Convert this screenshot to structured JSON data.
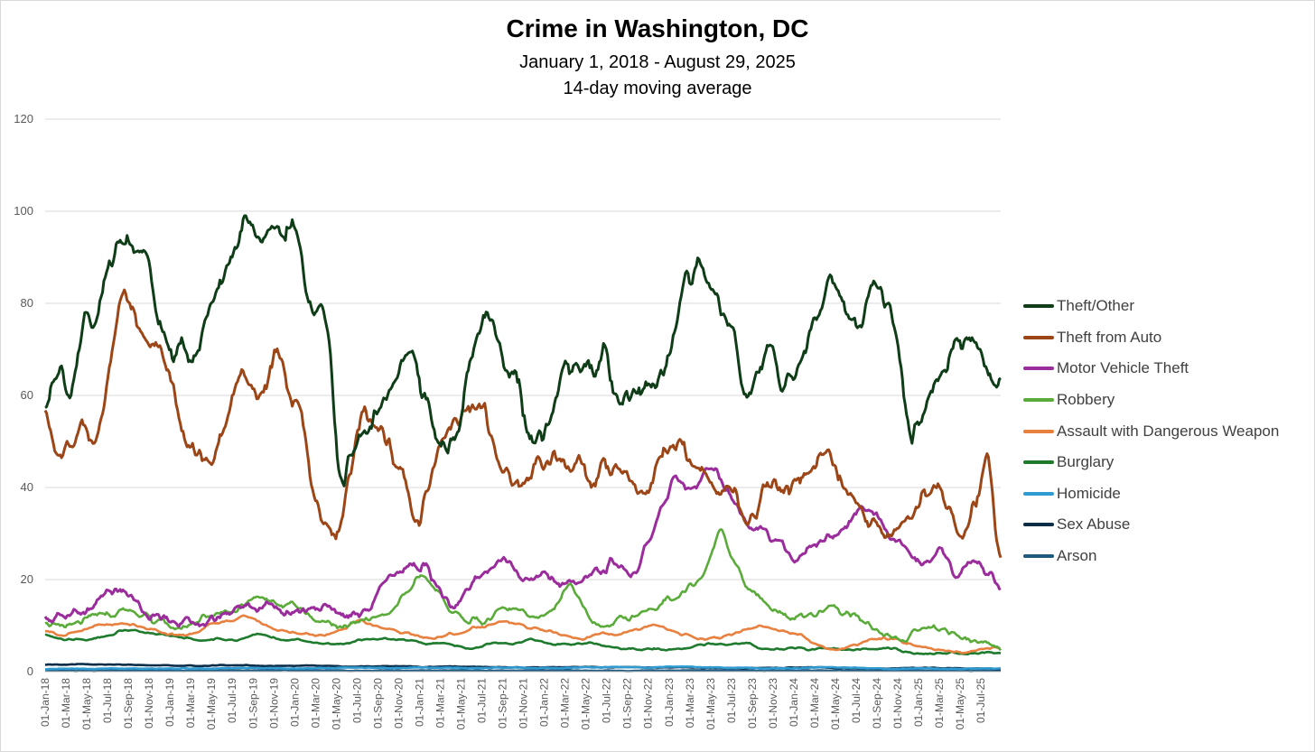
{
  "chart_data": {
    "type": "line",
    "title": "Crime in Washington, DC",
    "subtitle": "January 1, 2018 - August 29, 2025",
    "subtitle2": "14-day moving average",
    "xlabel": "",
    "ylabel": "",
    "ylim": [
      0,
      120
    ],
    "yticks": [
      0,
      20,
      40,
      60,
      80,
      100,
      120
    ],
    "grid": true,
    "legend_position": "right",
    "x_start": "2018-01-01",
    "x_end": "2025-08-29",
    "xtick_labels": [
      "01-Jan-18",
      "01-Mar-18",
      "01-May-18",
      "01-Jul-18",
      "01-Sep-18",
      "01-Nov-18",
      "01-Jan-19",
      "01-Mar-19",
      "01-May-19",
      "01-Jul-19",
      "01-Sep-19",
      "01-Nov-19",
      "01-Jan-20",
      "01-Mar-20",
      "01-May-20",
      "01-Jul-20",
      "01-Sep-20",
      "01-Nov-20",
      "01-Jan-21",
      "01-Mar-21",
      "01-May-21",
      "01-Jul-21",
      "01-Sep-21",
      "01-Nov-21",
      "01-Jan-22",
      "01-Mar-22",
      "01-May-22",
      "01-Jul-22",
      "01-Sep-22",
      "01-Nov-22",
      "01-Jan-23",
      "01-Mar-23",
      "01-May-23",
      "01-Jul-23",
      "01-Sep-23",
      "01-Nov-23",
      "01-Jan-24",
      "01-Mar-24",
      "01-May-24",
      "01-Jul-24",
      "01-Sep-24",
      "01-Nov-24",
      "01-Jan-25",
      "01-Mar-25",
      "01-May-25",
      "01-Jul-25"
    ],
    "x_knot_months": [
      0,
      1,
      2,
      3,
      4,
      5,
      6,
      7,
      8,
      9,
      10,
      11,
      12,
      13,
      14,
      15,
      16,
      17,
      18,
      19,
      20,
      21,
      22,
      23,
      24,
      25,
      26,
      27,
      28,
      29,
      30,
      31,
      32,
      33,
      34,
      35,
      36,
      37,
      38,
      39,
      40,
      41,
      42,
      43,
      44,
      45,
      46,
      47,
      48,
      49,
      50,
      51,
      52,
      53,
      54,
      55,
      56,
      57,
      58,
      59,
      60,
      61,
      62,
      63,
      64,
      65,
      66,
      67,
      68,
      69,
      70,
      71,
      72,
      73,
      74,
      75,
      76,
      77,
      78,
      79,
      80,
      81,
      82,
      83,
      84,
      85,
      86,
      87,
      88,
      89,
      90,
      91,
      92
    ],
    "series": [
      {
        "name": "Theft/Other",
        "color": "#0f3d18",
        "values": [
          58,
          67,
          63,
          74,
          79,
          88,
          94,
          93,
          88,
          76,
          70,
          68,
          72,
          82,
          86,
          93,
          98,
          94,
          94,
          96,
          90,
          80,
          78,
          46,
          44,
          52,
          56,
          63,
          66,
          67,
          57,
          49,
          50,
          62,
          72,
          75,
          66,
          62,
          52,
          51,
          56,
          67,
          68,
          64,
          68,
          62,
          62,
          63,
          62,
          70,
          80,
          88,
          84,
          77,
          72,
          60,
          65,
          70,
          62,
          67,
          72,
          80,
          85,
          77,
          73,
          82,
          81,
          68,
          52,
          58,
          65,
          70,
          73,
          72,
          67,
          62
        ]
      },
      {
        "name": "Theft from Auto",
        "color": "#9c4617",
        "values": [
          56,
          50,
          49,
          52,
          52,
          64,
          80,
          77,
          72,
          68,
          62,
          52,
          48,
          46,
          52,
          62,
          62,
          60,
          68,
          62,
          56,
          38,
          33,
          32,
          42,
          55,
          52,
          48,
          44,
          34,
          40,
          50,
          52,
          55,
          58,
          52,
          44,
          40,
          44,
          46,
          46,
          44,
          44,
          42,
          44,
          45,
          41,
          38,
          44,
          48,
          50,
          45,
          42,
          40,
          38,
          34,
          36,
          40,
          38,
          40,
          43,
          45,
          44,
          38,
          35,
          32,
          30,
          31,
          34,
          38,
          42,
          35,
          30,
          36,
          44,
          24
        ]
      },
      {
        "name": "Motor Vehicle Theft",
        "color": "#9b2c9c",
        "values": [
          12,
          11,
          12,
          14,
          17,
          18,
          15,
          12,
          11,
          10,
          11,
          10,
          12,
          13,
          14,
          14,
          13,
          13,
          13,
          14,
          13,
          12,
          14,
          20,
          22,
          24,
          22,
          18,
          14,
          18,
          22,
          24,
          22,
          20,
          22,
          18,
          20,
          20,
          22,
          24,
          22,
          28,
          36,
          42,
          40,
          44,
          42,
          36,
          32,
          30,
          28,
          24,
          26,
          28,
          30,
          33,
          35,
          31,
          28,
          25,
          24,
          26,
          22,
          24,
          22,
          18
        ]
      },
      {
        "name": "Robbery",
        "color": "#5aab3a",
        "values": [
          11,
          10,
          11,
          12,
          12,
          13,
          12,
          11,
          10,
          10,
          12,
          13,
          14,
          16,
          15,
          14,
          12,
          10,
          10,
          11,
          12,
          14,
          18,
          20,
          16,
          12,
          11,
          12,
          14,
          13,
          12,
          15,
          18,
          12,
          10,
          12,
          12,
          14,
          16,
          18,
          22,
          30,
          22,
          18,
          14,
          12,
          12,
          13,
          14,
          12,
          10,
          8,
          7,
          9,
          10,
          8,
          7,
          6,
          5
        ]
      },
      {
        "name": "Assault with Dangerous Weapon",
        "color": "#e8803f",
        "values": [
          9,
          8,
          9,
          10,
          10,
          10,
          9,
          8,
          8,
          10,
          11,
          12,
          10,
          9,
          8,
          8,
          9,
          11,
          10,
          9,
          8,
          7,
          8,
          9,
          10,
          11,
          10,
          9,
          8,
          7,
          8,
          8,
          9,
          10,
          9,
          8,
          7,
          8,
          9,
          10,
          9,
          8,
          6,
          5,
          6,
          7,
          7,
          6,
          5,
          5,
          4,
          5,
          5
        ]
      },
      {
        "name": "Burglary",
        "color": "#1e7a2c",
        "values": [
          8,
          7,
          7,
          8,
          9,
          8,
          8,
          7,
          7,
          7,
          8,
          7,
          7,
          6,
          6,
          7,
          7,
          7,
          6,
          6,
          5,
          6,
          6,
          7,
          6,
          6,
          6,
          5,
          5,
          5,
          5,
          6,
          6,
          6,
          5,
          5,
          5,
          5,
          5,
          5,
          5,
          4,
          4,
          4,
          4,
          4
        ]
      },
      {
        "name": "Homicide",
        "color": "#2f9bd1",
        "values": [
          0.6,
          0.6,
          0.7,
          0.6,
          0.7,
          0.7,
          0.8,
          0.7,
          0.8,
          0.9,
          0.8,
          0.9,
          0.8,
          0.9,
          0.8,
          0.9,
          1.0,
          0.9,
          1.1,
          0.9,
          0.8,
          0.7,
          0.9,
          0.8,
          0.6,
          0.7,
          0.6,
          0.7
        ]
      },
      {
        "name": "Sex Abuse",
        "color": "#0c2d48",
        "values": [
          1.5,
          1.6,
          1.5,
          1.4,
          1.3,
          1.4,
          1.2,
          1.3,
          1.1,
          1.2,
          1.0,
          1.1,
          1.0,
          0.9,
          1.0,
          1.0,
          0.9,
          0.9,
          0.8,
          0.8,
          0.9,
          0.8,
          0.7,
          0.8,
          0.7,
          0.6
        ]
      },
      {
        "name": "Arson",
        "color": "#1f5a80",
        "values": [
          0.3,
          0.2,
          0.3,
          0.2,
          0.3,
          0.3,
          0.2,
          0.2,
          0.3,
          0.2,
          0.3,
          0.2,
          0.2,
          0.3,
          0.2,
          0.2,
          0.3,
          0.2,
          0.2,
          0.2
        ]
      }
    ]
  }
}
